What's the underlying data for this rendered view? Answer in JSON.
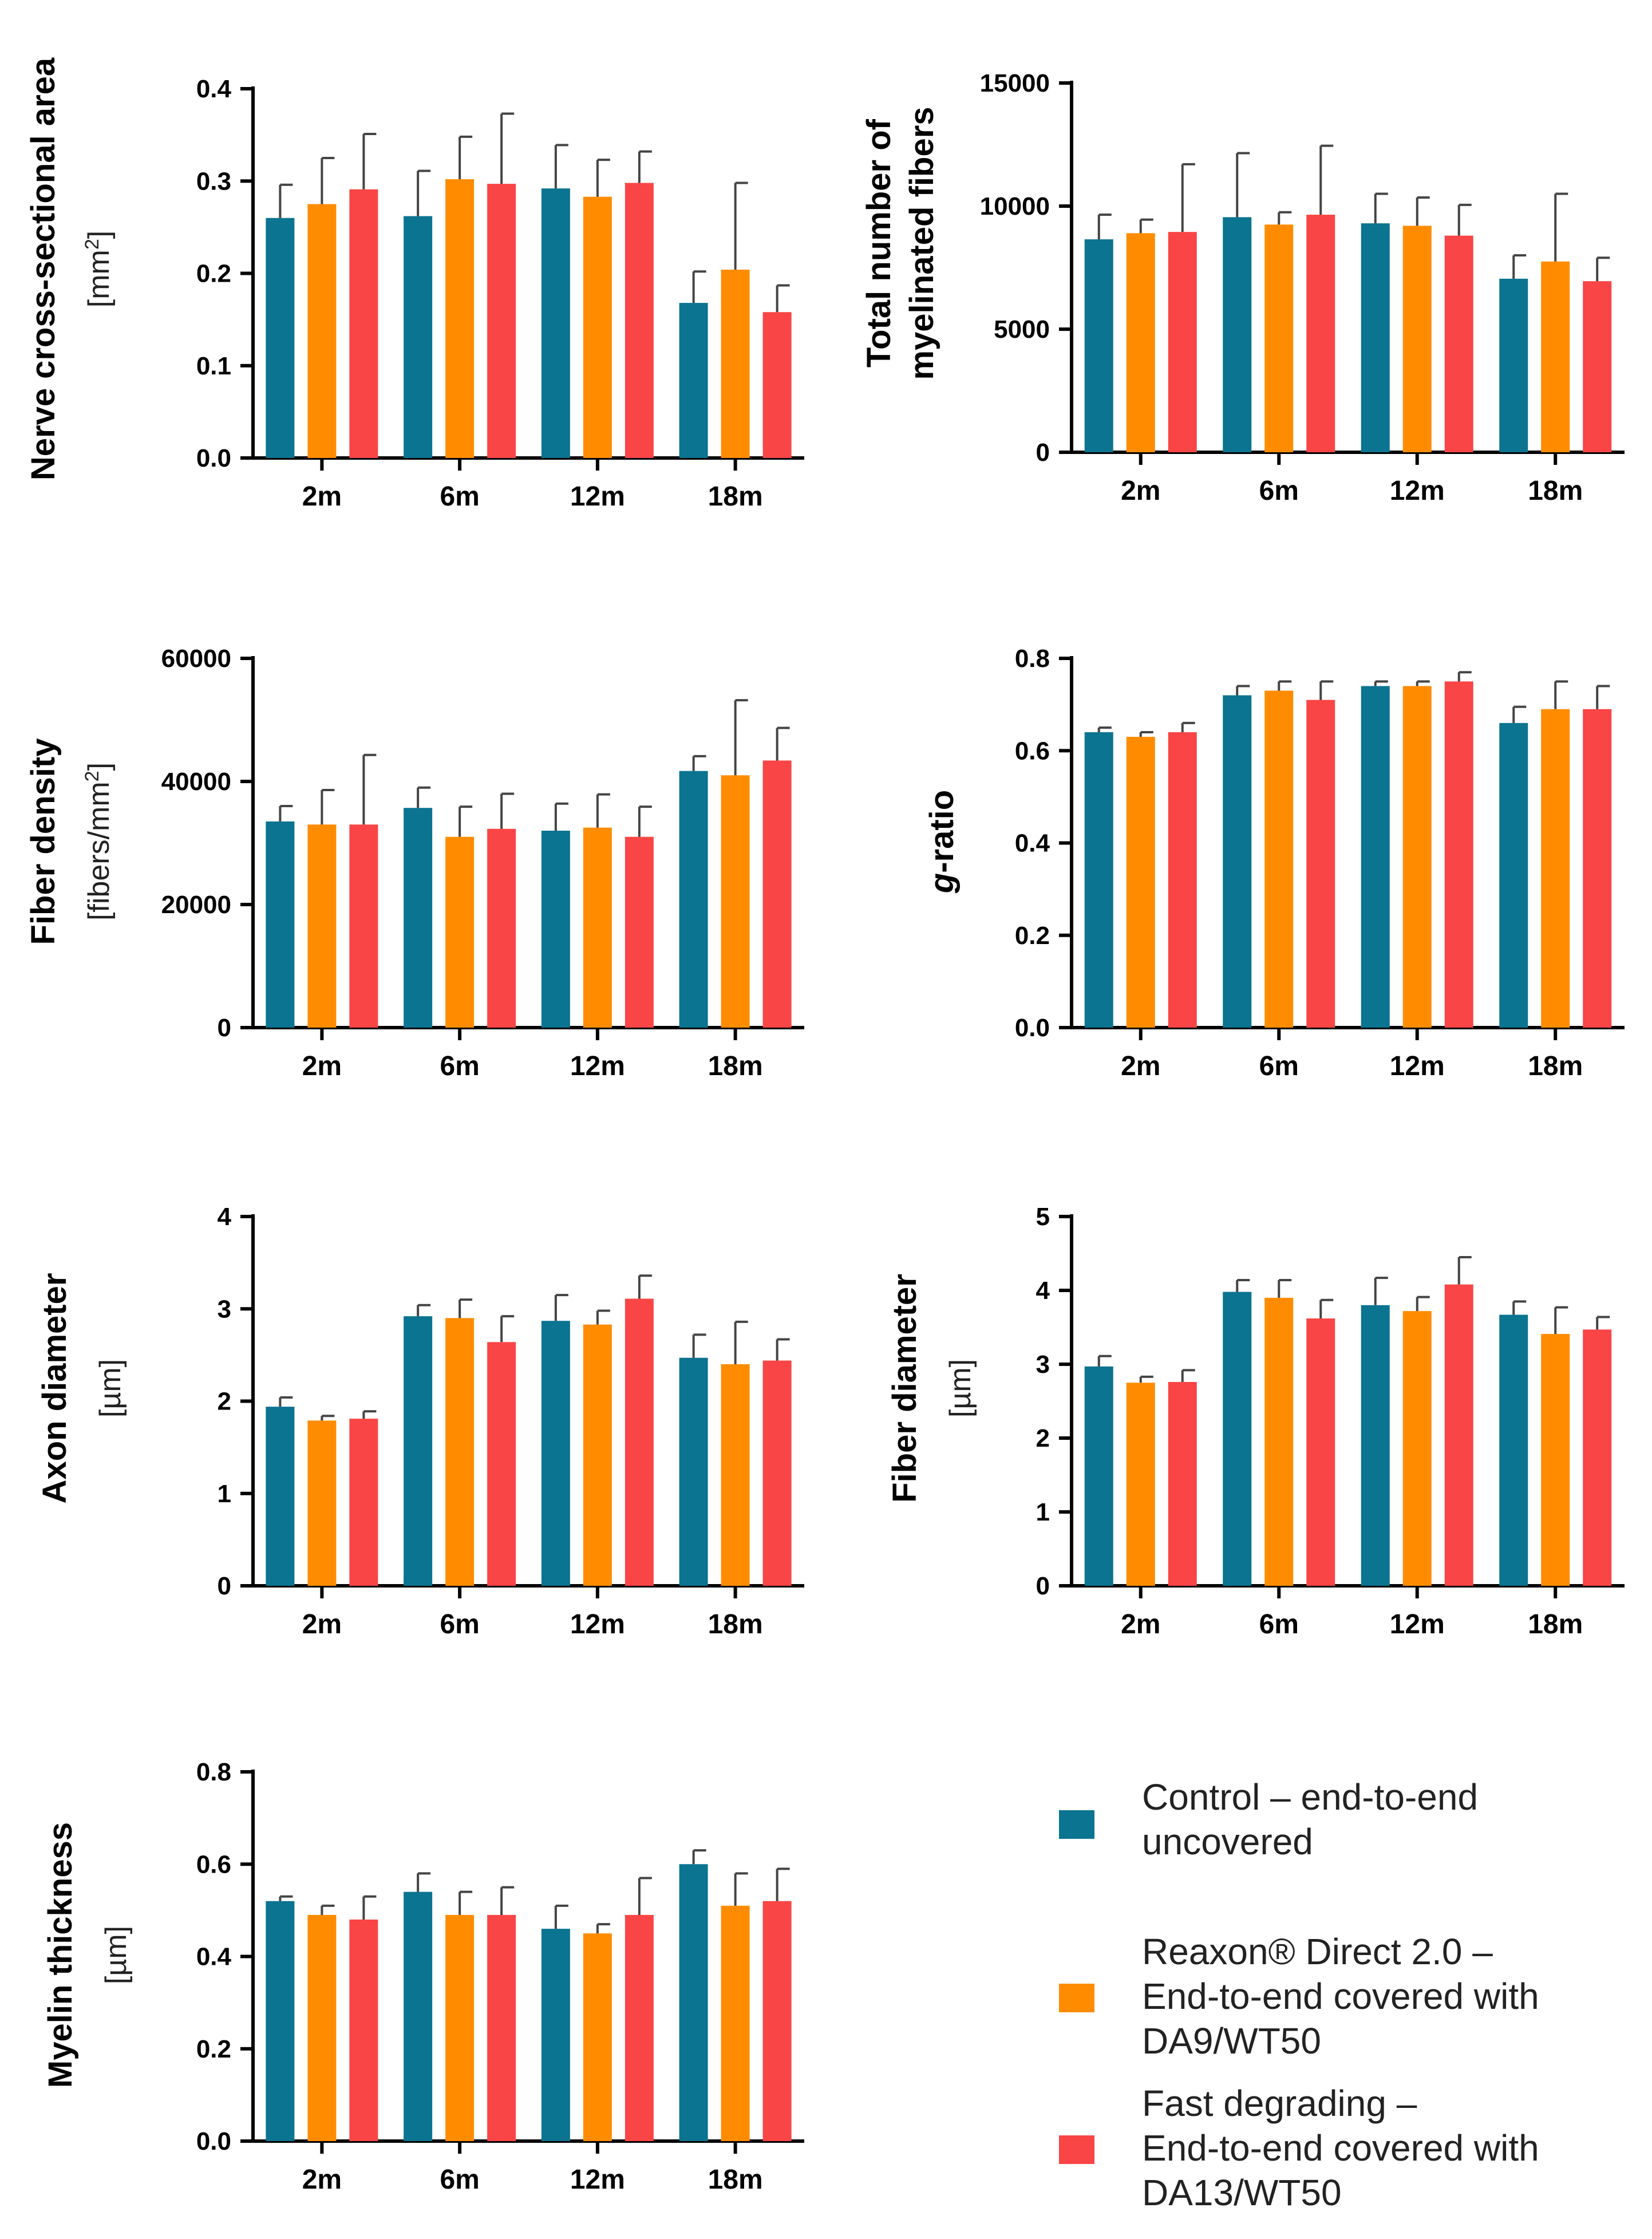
{
  "colors": {
    "control": "#0B7490",
    "reaxon": "#FF8C00",
    "fast": "#F94545",
    "axis": "#000000",
    "error": "#444444"
  },
  "legend": {
    "items": [
      {
        "series": "control",
        "lines": [
          "Control – end-to-end",
          "uncovered"
        ]
      },
      {
        "series": "reaxon",
        "lines": [
          "Reaxon® Direct 2.0 –",
          "End-to-end covered with",
          "DA9/WT50"
        ]
      },
      {
        "series": "fast",
        "lines": [
          "Fast degrading –",
          "End-to-end covered with",
          "DA13/WT50"
        ]
      }
    ]
  },
  "chart_data": [
    {
      "id": "nerve-area",
      "type": "bar",
      "ylabel": "Nerve cross-sectional area",
      "ylabel_unit": {
        "pre": "[mm",
        "sup": "2",
        "post": "]"
      },
      "categories": [
        "2m",
        "6m",
        "12m",
        "18m"
      ],
      "ylim": [
        0,
        0.4
      ],
      "yticks": [
        "0.0",
        "0.1",
        "0.2",
        "0.3",
        "0.4"
      ],
      "series": [
        {
          "name": "Control – end-to-end uncovered",
          "key": "control",
          "values": [
            0.26,
            0.262,
            0.292,
            0.168
          ],
          "errors": [
            0.036,
            0.049,
            0.047,
            0.034
          ]
        },
        {
          "name": "Reaxon® Direct 2.0 – End-to-end covered with DA9/WT50",
          "key": "reaxon",
          "values": [
            0.275,
            0.302,
            0.283,
            0.204
          ],
          "errors": [
            0.05,
            0.046,
            0.04,
            0.094
          ]
        },
        {
          "name": "Fast degrading – End-to-end covered with DA13/WT50",
          "key": "fast",
          "values": [
            0.291,
            0.297,
            0.298,
            0.158
          ],
          "errors": [
            0.06,
            0.076,
            0.034,
            0.029
          ]
        }
      ]
    },
    {
      "id": "total-fibers",
      "type": "bar",
      "ylabel": "Total number of",
      "ylabel2": "myelinated fibers",
      "categories": [
        "2m",
        "6m",
        "12m",
        "18m"
      ],
      "ylim": [
        0,
        15000
      ],
      "yticks": [
        "0",
        "5000",
        "10000",
        "15000"
      ],
      "series": [
        {
          "name": "Control – end-to-end uncovered",
          "key": "control",
          "values": [
            8650,
            9550,
            9300,
            7050
          ],
          "errors": [
            1000,
            2600,
            1200,
            950
          ]
        },
        {
          "name": "Reaxon® Direct 2.0 – End-to-end covered with DA9/WT50",
          "key": "reaxon",
          "values": [
            8900,
            9250,
            9200,
            7750
          ],
          "errors": [
            550,
            500,
            1150,
            2750
          ]
        },
        {
          "name": "Fast degrading – End-to-end covered with DA13/WT50",
          "key": "fast",
          "values": [
            8950,
            9650,
            8800,
            6950
          ],
          "errors": [
            2750,
            2800,
            1250,
            950
          ]
        }
      ]
    },
    {
      "id": "fiber-density",
      "type": "bar",
      "ylabel": "Fiber density",
      "ylabel_unit": {
        "pre": "[fibers/mm",
        "sup": "2",
        "post": "]"
      },
      "categories": [
        "2m",
        "6m",
        "12m",
        "18m"
      ],
      "ylim": [
        0,
        60000
      ],
      "yticks": [
        "0",
        "20000",
        "40000",
        "60000"
      ],
      "series": [
        {
          "name": "Control – end-to-end uncovered",
          "key": "control",
          "values": [
            33500,
            35700,
            32000,
            41700
          ],
          "errors": [
            2500,
            3300,
            4400,
            2400
          ]
        },
        {
          "name": "Reaxon® Direct 2.0 – End-to-end covered with DA9/WT50",
          "key": "reaxon",
          "values": [
            33000,
            31000,
            32500,
            41000
          ],
          "errors": [
            5600,
            4900,
            5400,
            12200
          ]
        },
        {
          "name": "Fast degrading – End-to-end covered with DA13/WT50",
          "key": "fast",
          "values": [
            33000,
            32300,
            31000,
            43400
          ],
          "errors": [
            11300,
            5700,
            4900,
            5300
          ]
        }
      ]
    },
    {
      "id": "g-ratio",
      "type": "bar",
      "ylabel_italic": "g",
      "ylabel": "-ratio",
      "categories": [
        "2m",
        "6m",
        "12m",
        "18m"
      ],
      "ylim": [
        0,
        0.8
      ],
      "yticks": [
        "0.0",
        "0.2",
        "0.4",
        "0.6",
        "0.8"
      ],
      "series": [
        {
          "name": "Control – end-to-end uncovered",
          "key": "control",
          "values": [
            0.64,
            0.72,
            0.74,
            0.66
          ],
          "errors": [
            0.01,
            0.02,
            0.01,
            0.035
          ]
        },
        {
          "name": "Reaxon® Direct 2.0 – End-to-end covered with DA9/WT50",
          "key": "reaxon",
          "values": [
            0.63,
            0.73,
            0.74,
            0.69
          ],
          "errors": [
            0.01,
            0.02,
            0.01,
            0.06
          ]
        },
        {
          "name": "Fast degrading – End-to-end covered with DA13/WT50",
          "key": "fast",
          "values": [
            0.64,
            0.71,
            0.75,
            0.69
          ],
          "errors": [
            0.02,
            0.04,
            0.02,
            0.05
          ]
        }
      ]
    },
    {
      "id": "axon-diameter",
      "type": "bar",
      "ylabel": "Axon diameter",
      "ylabel_unit": {
        "pre": "[µm]",
        "sup": "",
        "post": ""
      },
      "categories": [
        "2m",
        "6m",
        "12m",
        "18m"
      ],
      "ylim": [
        0,
        4
      ],
      "yticks": [
        "0",
        "1",
        "2",
        "3",
        "4"
      ],
      "series": [
        {
          "name": "Control – end-to-end uncovered",
          "key": "control",
          "values": [
            1.94,
            2.92,
            2.87,
            2.47
          ],
          "errors": [
            0.1,
            0.12,
            0.28,
            0.25
          ]
        },
        {
          "name": "Reaxon® Direct 2.0 – End-to-end covered with DA9/WT50",
          "key": "reaxon",
          "values": [
            1.79,
            2.9,
            2.83,
            2.4
          ],
          "errors": [
            0.05,
            0.2,
            0.15,
            0.46
          ]
        },
        {
          "name": "Fast degrading – End-to-end covered with DA13/WT50",
          "key": "fast",
          "values": [
            1.81,
            2.64,
            3.11,
            2.44
          ],
          "errors": [
            0.08,
            0.28,
            0.25,
            0.23
          ]
        }
      ]
    },
    {
      "id": "fiber-diameter",
      "type": "bar",
      "ylabel": "Fiber diameter",
      "ylabel_unit": {
        "pre": "[µm]",
        "sup": "",
        "post": ""
      },
      "categories": [
        "2m",
        "6m",
        "12m",
        "18m"
      ],
      "ylim": [
        0,
        5
      ],
      "yticks": [
        "0",
        "1",
        "2",
        "3",
        "4",
        "5"
      ],
      "series": [
        {
          "name": "Control – end-to-end uncovered",
          "key": "control",
          "values": [
            2.97,
            3.98,
            3.8,
            3.67
          ],
          "errors": [
            0.14,
            0.16,
            0.37,
            0.18
          ]
        },
        {
          "name": "Reaxon® Direct 2.0 – End-to-end covered with DA9/WT50",
          "key": "reaxon",
          "values": [
            2.75,
            3.9,
            3.72,
            3.41
          ],
          "errors": [
            0.08,
            0.24,
            0.19,
            0.36
          ]
        },
        {
          "name": "Fast degrading – End-to-end covered with DA13/WT50",
          "key": "fast",
          "values": [
            2.76,
            3.62,
            4.08,
            3.47
          ],
          "errors": [
            0.16,
            0.25,
            0.37,
            0.17
          ]
        }
      ]
    },
    {
      "id": "myelin-thickness",
      "type": "bar",
      "ylabel": "Myelin thickness",
      "ylabel_unit": {
        "pre": "[µm]",
        "sup": "",
        "post": ""
      },
      "categories": [
        "2m",
        "6m",
        "12m",
        "18m"
      ],
      "ylim": [
        0,
        0.8
      ],
      "yticks": [
        "0.0",
        "0.2",
        "0.4",
        "0.6",
        "0.8"
      ],
      "series": [
        {
          "name": "Control – end-to-end uncovered",
          "key": "control",
          "values": [
            0.52,
            0.54,
            0.46,
            0.6
          ],
          "errors": [
            0.01,
            0.04,
            0.05,
            0.03
          ]
        },
        {
          "name": "Reaxon® Direct 2.0 – End-to-end covered with DA9/WT50",
          "key": "reaxon",
          "values": [
            0.49,
            0.49,
            0.45,
            0.51
          ],
          "errors": [
            0.02,
            0.05,
            0.02,
            0.07
          ]
        },
        {
          "name": "Fast degrading – End-to-end covered with DA13/WT50",
          "key": "fast",
          "values": [
            0.48,
            0.49,
            0.49,
            0.52
          ],
          "errors": [
            0.05,
            0.06,
            0.08,
            0.07
          ]
        }
      ]
    }
  ]
}
